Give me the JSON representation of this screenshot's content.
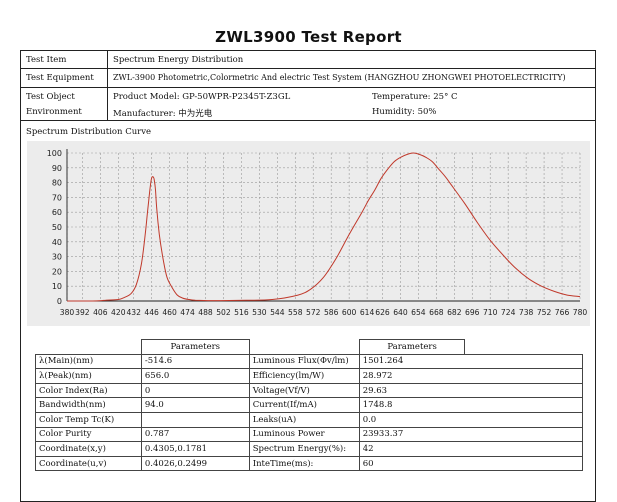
{
  "report": {
    "title": "ZWL3900 Test Report",
    "test_item_label": "Test Item",
    "test_item_value": "Spectrum Energy Distribution",
    "equipment_label": "Test Equipment",
    "equipment_value": "ZWL-3900 Photometric,Colormetric And electric Test System (HANGZHOU ZHONGWEI PHOTOELECTRICITY)",
    "object_label": "Test Object",
    "environment_label": "Environment",
    "product_model": "Product Model: GP-50WPR-P2345T-Z3GL",
    "manufacturer": "Manufacturer: 中为光电",
    "temperature": "Temperature: 25° C",
    "humidity": "Humidity: 50%",
    "curve_label": "Spectrum Distribution Curve"
  },
  "chart_data": {
    "type": "line",
    "title": "",
    "xlabel": "",
    "ylabel": "",
    "xlim": [
      380,
      780
    ],
    "ylim": [
      0,
      100
    ],
    "grid": true,
    "x_ticks": [
      380,
      392,
      406,
      420,
      432,
      446,
      460,
      474,
      488,
      502,
      516,
      530,
      544,
      558,
      572,
      586,
      600,
      614,
      626,
      640,
      654,
      668,
      682,
      696,
      710,
      724,
      738,
      752,
      766,
      780
    ],
    "y_ticks": [
      0,
      10,
      20,
      30,
      40,
      50,
      60,
      70,
      80,
      90,
      100
    ],
    "series": [
      {
        "color": "#c0392b",
        "x": [
          380,
          400,
          410,
          420,
          425,
          430,
          434,
          438,
          441,
          443,
          445,
          446,
          447,
          448,
          449,
          450,
          452,
          455,
          458,
          462,
          466,
          470,
          475,
          480,
          490,
          500,
          520,
          540,
          560,
          570,
          580,
          590,
          600,
          610,
          615,
          620,
          625,
          630,
          635,
          640,
          645,
          650,
          655,
          660,
          665,
          670,
          675,
          680,
          690,
          700,
          710,
          720,
          730,
          740,
          750,
          760,
          770,
          780
        ],
        "y": [
          0,
          0,
          0.5,
          1,
          2.5,
          5,
          11,
          25,
          45,
          62,
          78,
          83,
          84,
          82,
          75,
          62,
          45,
          28,
          16,
          9,
          4,
          2,
          1,
          0.5,
          0.3,
          0.3,
          0.5,
          1,
          4,
          8,
          16,
          29,
          45,
          60,
          68,
          75,
          83,
          89,
          94,
          97,
          99,
          100,
          99,
          97,
          94,
          89,
          84,
          78,
          66,
          53,
          41,
          31,
          22,
          15,
          10,
          6.5,
          4,
          3
        ]
      }
    ]
  },
  "params": {
    "header": "Parameters",
    "left": [
      {
        "label": "λ(Main)(nm)",
        "value": "-514.6"
      },
      {
        "label": "λ(Peak)(nm)",
        "value": "656.0"
      },
      {
        "label": "Color Index(Ra)",
        "value": "0"
      },
      {
        "label": "Bandwidth(nm)",
        "value": "94.0"
      },
      {
        "label": "Color Temp Tc(K)",
        "value": ""
      },
      {
        "label": "Color Purity",
        "value": "0.787"
      },
      {
        "label": "Coordinate(x,y)",
        "value": "0.4305,0.1781"
      },
      {
        "label": "Coordinate(u,v)",
        "value": "0.4026,0.2499"
      }
    ],
    "right": [
      {
        "label": "Luminous Flux(Φv/lm)",
        "value": "1501.264"
      },
      {
        "label": "Efficiency(lm/W)",
        "value": "28.972"
      },
      {
        "label": "Voltage(Vf/V)",
        "value": "29.63"
      },
      {
        "label": "Current(If/mA)",
        "value": "1748.8"
      },
      {
        "label": "Leaks(uA)",
        "value": "0.0"
      },
      {
        "label": "Luminous Power",
        "value": "23933.37"
      },
      {
        "label": "Spectrum Energy(%):",
        "value": "42"
      },
      {
        "label": "InteTime(ms):",
        "value": "60"
      }
    ]
  }
}
